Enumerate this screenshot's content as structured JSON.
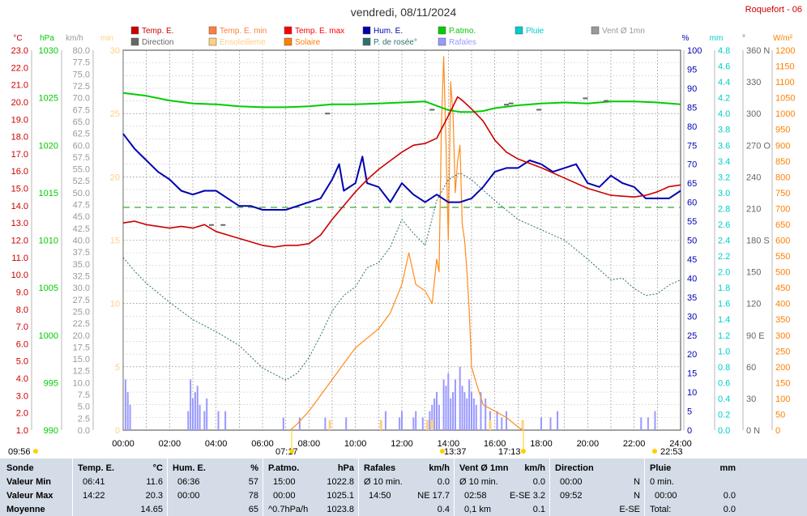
{
  "chart_data": {
    "type": "line",
    "title": "vendredi, 08/11/2024",
    "station": "Roquefort - 06",
    "legend": [
      {
        "label": "Temp. E.",
        "color": "#cc0000"
      },
      {
        "label": "Temp. E. min",
        "color": "#ff7f3f"
      },
      {
        "label": "Temp. E. max",
        "color": "#ff0000"
      },
      {
        "label": "Hum. E.",
        "color": "#0000b0"
      },
      {
        "label": "P.atmo.",
        "color": "#00cc00"
      },
      {
        "label": "Pluie",
        "color": "#00cccc"
      },
      {
        "label": "Vent Ø 1mn",
        "color": "#999999"
      },
      {
        "label": "Direction",
        "color": "#666666"
      },
      {
        "label": "Ensoleilleme",
        "color": "#ffd080"
      },
      {
        "label": "Solaire",
        "color": "#ff7f00"
      },
      {
        "label": "P. de rosée°",
        "color": "#2f6f6f"
      },
      {
        "label": "Rafales",
        "color": "#9999ff"
      }
    ],
    "x_ticks": [
      "00:00",
      "02:00",
      "04:00",
      "06:00",
      "08:00",
      "10:00",
      "12:00",
      "14:00",
      "16:00",
      "18:00",
      "20:00",
      "22:00",
      "24:00"
    ],
    "axes": {
      "temp": {
        "unit": "°C",
        "color": "#cc0000",
        "ticks": [
          "23.0",
          "22.0",
          "21.0",
          "20.0",
          "19.0",
          "18.0",
          "17.0",
          "16.0",
          "15.0",
          "14.0",
          "13.0",
          "12.0",
          "11.0",
          "10.0",
          "9.0",
          "8.0",
          "7.0",
          "6.0",
          "5.0",
          "4.0",
          "3.0",
          "2.0",
          "1.0"
        ]
      },
      "press": {
        "unit": "hPa",
        "color": "#00cc00",
        "ticks": [
          "1030",
          "1025",
          "1020",
          "1015",
          "1010",
          "1005",
          "1000",
          "995",
          "990"
        ]
      },
      "wind": {
        "unit": "km/h",
        "color": "#999999",
        "ticks": [
          "80.0",
          "77.5",
          "75.0",
          "72.5",
          "70.0",
          "67.5",
          "65.0",
          "62.5",
          "60.0",
          "57.5",
          "55.0",
          "52.5",
          "50.0",
          "47.5",
          "45.0",
          "42.5",
          "40.0",
          "37.5",
          "35.0",
          "32.5",
          "30.0",
          "27.5",
          "25.0",
          "22.5",
          "20.0",
          "17.5",
          "15.0",
          "12.5",
          "10.0",
          "7.5",
          "5.0",
          "2.5",
          "0.0"
        ]
      },
      "min": {
        "unit": "min",
        "color": "#ffd080",
        "ticks": [
          "30",
          "25",
          "20",
          "15",
          "10",
          "5",
          "0"
        ]
      },
      "hum": {
        "unit": "%",
        "color": "#0000b0",
        "ticks": [
          "100",
          "95",
          "90",
          "85",
          "80",
          "75",
          "70",
          "65",
          "60",
          "55",
          "50",
          "45",
          "40",
          "35",
          "30",
          "25",
          "20",
          "15",
          "10",
          "5",
          "0"
        ]
      },
      "rain": {
        "unit": "mm",
        "color": "#00cccc",
        "ticks": [
          "4.8",
          "4.6",
          "4.4",
          "4.2",
          "4.0",
          "3.8",
          "3.6",
          "3.4",
          "3.2",
          "3.0",
          "2.8",
          "2.6",
          "2.4",
          "2.2",
          "2.0",
          "1.8",
          "1.6",
          "1.4",
          "1.2",
          "1.0",
          "0.8",
          "0.6",
          "0.4",
          "0.2",
          "0.0"
        ]
      },
      "dir": {
        "unit": "°",
        "color": "#666666",
        "ticks": [
          "360 N",
          "330",
          "300",
          "270 O",
          "240",
          "210",
          "180 S",
          "150",
          "120",
          "90 E",
          "60",
          "30",
          "0 N"
        ]
      },
      "solar": {
        "unit": "W/m²",
        "color": "#ff7f00",
        "ticks": [
          "1200",
          "1150",
          "1100",
          "1050",
          "1000",
          "950",
          "900",
          "850",
          "800",
          "750",
          "700",
          "650",
          "600",
          "550",
          "500",
          "450",
          "400",
          "350",
          "300",
          "250",
          "200",
          "150",
          "100",
          "50",
          "0"
        ]
      }
    },
    "series": {
      "temp": {
        "x": [
          0,
          0.5,
          1,
          1.5,
          2,
          2.5,
          3,
          3.5,
          4,
          4.5,
          5,
          5.5,
          6,
          6.5,
          7,
          7.5,
          8,
          8.5,
          9,
          9.5,
          10,
          10.5,
          11,
          11.5,
          12,
          12.5,
          13,
          13.5,
          14,
          14.4,
          14.6,
          15,
          15.5,
          16,
          16.5,
          17,
          18,
          19,
          20,
          21,
          22,
          22.5,
          23,
          23.5,
          24
        ],
        "y": [
          13.0,
          13.1,
          12.9,
          12.8,
          12.7,
          12.8,
          12.7,
          12.9,
          12.5,
          12.3,
          12.1,
          11.9,
          11.7,
          11.6,
          11.7,
          11.7,
          11.8,
          12.3,
          13.2,
          14.0,
          14.8,
          15.5,
          16.1,
          16.6,
          17.1,
          17.5,
          17.6,
          17.9,
          19.2,
          20.3,
          20.1,
          19.6,
          18.9,
          17.8,
          17.1,
          16.7,
          16.2,
          15.6,
          15.0,
          14.6,
          14.5,
          14.6,
          14.8,
          15.1,
          15.2
        ]
      },
      "dew": {
        "x": [
          0,
          0.5,
          1,
          2,
          3,
          4,
          5,
          6,
          7,
          7.5,
          8,
          8.5,
          9,
          9.5,
          10,
          10.5,
          11,
          11.5,
          12,
          12.5,
          13,
          13.5,
          14,
          14.5,
          15,
          16,
          17,
          18,
          19,
          20,
          21,
          21.5,
          22,
          22.5,
          23,
          23.5,
          24
        ],
        "y": [
          11.0,
          10.2,
          9.5,
          8.4,
          7.4,
          6.7,
          5.9,
          4.6,
          3.9,
          4.3,
          5.2,
          6.5,
          7.9,
          8.8,
          9.3,
          10.4,
          10.7,
          11.6,
          13.2,
          12.4,
          11.7,
          14.3,
          15.5,
          15.9,
          15.5,
          14.3,
          13.2,
          12.6,
          12.0,
          10.9,
          9.7,
          9.8,
          9.2,
          8.8,
          8.9,
          9.4,
          9.7
        ]
      },
      "hum": {
        "x": [
          0,
          0.5,
          1,
          1.5,
          2,
          2.5,
          3,
          3.5,
          4,
          4.5,
          5,
          5.5,
          6,
          6.5,
          7,
          7.5,
          8,
          8.5,
          9,
          9.3,
          9.5,
          10,
          10.3,
          10.5,
          11,
          11.5,
          12,
          12.5,
          13,
          13.5,
          14,
          14.5,
          15,
          15.5,
          16,
          16.5,
          17,
          17.5,
          18,
          18.5,
          19,
          19.5,
          20,
          20.5,
          21,
          21.5,
          22,
          22.5,
          23,
          23.5,
          24
        ],
        "y": [
          78,
          74,
          71,
          68,
          66,
          63,
          62,
          63,
          63,
          61,
          59,
          59,
          58,
          58,
          58,
          59,
          60,
          61,
          66,
          70,
          63,
          65,
          72,
          65,
          64,
          60,
          65,
          62,
          60,
          62,
          60,
          60,
          61,
          64,
          68,
          69,
          69,
          71,
          70,
          68,
          69,
          70,
          65,
          64,
          67,
          65,
          64,
          61,
          61,
          61,
          63
        ]
      },
      "press": {
        "x": [
          0,
          1,
          2,
          3,
          4,
          5,
          6,
          7,
          8,
          9,
          10,
          11,
          12,
          13,
          14,
          14.5,
          15,
          15.5,
          16,
          17,
          18,
          19,
          20,
          21,
          22,
          23,
          24
        ],
        "y": [
          1025.5,
          1025.2,
          1024.7,
          1024.4,
          1024.3,
          1024.1,
          1024.0,
          1024.0,
          1024.1,
          1024.3,
          1024.3,
          1024.4,
          1024.5,
          1024.6,
          1023.7,
          1023.5,
          1023.5,
          1023.6,
          1023.9,
          1024.2,
          1024.4,
          1024.5,
          1024.4,
          1024.6,
          1024.6,
          1024.5,
          1024.3
        ]
      },
      "solar": {
        "x": [
          7.2,
          7.5,
          8,
          8.5,
          9,
          9.5,
          10,
          10.5,
          11,
          11.5,
          12,
          12.3,
          12.6,
          13,
          13.3,
          13.5,
          13.6,
          13.7,
          13.8,
          13.9,
          14,
          14.1,
          14.2,
          14.3,
          14.4,
          14.5,
          14.6,
          14.7,
          14.8,
          14.9,
          15,
          15.2,
          15.5,
          16,
          16.5,
          17,
          17.2
        ],
        "y": [
          0,
          20,
          60,
          110,
          160,
          210,
          260,
          290,
          320,
          370,
          460,
          560,
          460,
          440,
          400,
          540,
          500,
          950,
          1180,
          900,
          600,
          1100,
          1000,
          750,
          850,
          900,
          650,
          600,
          500,
          380,
          200,
          150,
          80,
          60,
          40,
          10,
          0
        ]
      },
      "wind_avg_ticks": [
        3.8,
        4.3,
        8.8,
        13.3,
        13.3,
        16.5,
        16.7,
        17.9,
        19.9,
        20.8
      ],
      "wind_avg_ticks_y": [
        16.2,
        16.2,
        25.0,
        25.3,
        25.3,
        25.7,
        25.8,
        25.3,
        26.2,
        26.0
      ]
    },
    "dew_line": 13.9,
    "sun_events": {
      "sunrise": "07:17",
      "sunset": "17:13",
      "solar_max": "13:37",
      "bottom_left": "09:56",
      "bottom_right": "22:53"
    }
  },
  "table": {
    "headers": {
      "c1": "Sonde",
      "c2": "Temp. E.",
      "c2u": "°C",
      "c3": "Hum. E.",
      "c3u": "%",
      "c4": "P.atmo.",
      "c4u": "hPa",
      "c5": "Rafales",
      "c5u": "km/h",
      "c6": "Vent Ø 1mn",
      "c6u": "km/h",
      "c7": "Direction",
      "c8": "Pluie",
      "c8u": "mm"
    },
    "rows": [
      {
        "label": "Valeur Min",
        "t_time": "06:41",
        "t_val": "11.6",
        "h_time": "06:36",
        "h_val": "57",
        "p_time": "15:00",
        "p_val": "1022.8",
        "r_time": "Ø 10 min.",
        "r_val": "0.0",
        "v_time": "Ø 10 min.",
        "v_val": "0.0",
        "d_time": "00:00",
        "d_val": "N",
        "pl_time": "0 min.",
        "pl_val": ""
      },
      {
        "label": "Valeur Max",
        "t_time": "14:22",
        "t_val": "20.3",
        "h_time": "00:00",
        "h_val": "78",
        "p_time": "00:00",
        "p_val": "1025.1",
        "r_time": "14:50",
        "r_val": "NE 17.7",
        "v_time": "02:58",
        "v_val": "E-SE 3.2",
        "d_time": "09:52",
        "d_val": "N",
        "pl_time": "00:00",
        "pl_val": "0.0"
      },
      {
        "label": "Moyenne",
        "t_time": "",
        "t_val": "14.65",
        "h_time": "",
        "h_val": "65",
        "p_time": "^0.7hPa/h",
        "p_val": "1023.8",
        "r_time": "",
        "r_val": "0.4",
        "v_time": "0,1 km",
        "v_val": "0.1",
        "d_time": "",
        "d_val": "E-SE",
        "pl_time": "Total:",
        "pl_val": "0.0"
      }
    ]
  }
}
